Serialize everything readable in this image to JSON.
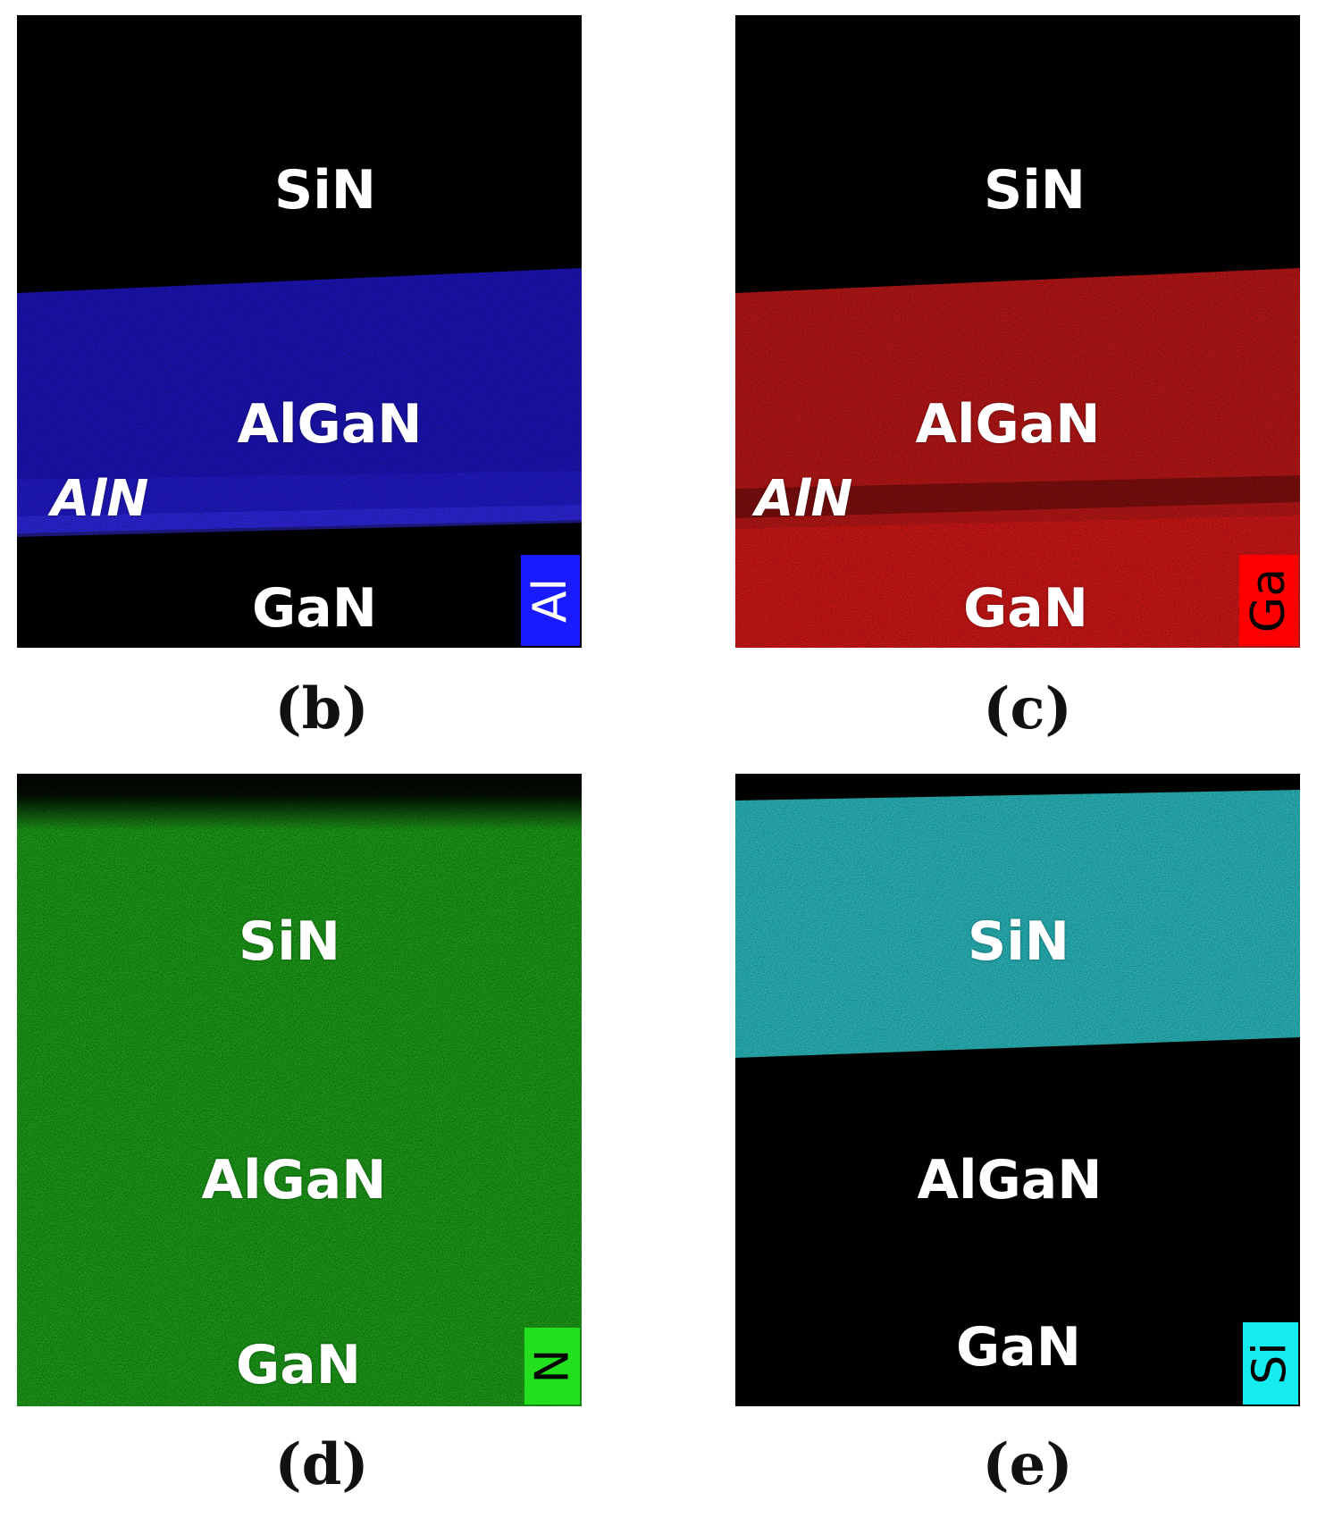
{
  "panels": {
    "b": {
      "caption": "(b)",
      "element_label": "Al",
      "element_color": "#1a1aff",
      "element_text_color": "#ffffff",
      "layers": {
        "top": "SiN",
        "middle": "AlGaN",
        "interlayer": "AlN",
        "bottom": "GaN"
      }
    },
    "c": {
      "caption": "(c)",
      "element_label": "Ga",
      "element_color": "#ff0000",
      "element_text_color": "#000000",
      "layers": {
        "top": "SiN",
        "middle": "AlGaN",
        "interlayer": "AlN",
        "bottom": "GaN"
      }
    },
    "d": {
      "caption": "(d)",
      "element_label": "N",
      "element_color": "#22e01e",
      "element_text_color": "#000000",
      "layers": {
        "top": "SiN",
        "middle": "AlGaN",
        "bottom": "GaN"
      }
    },
    "e": {
      "caption": "(e)",
      "element_label": "Si",
      "element_color": "#15ecef",
      "element_text_color": "#000000",
      "layers": {
        "top": "SiN",
        "middle": "AlGaN",
        "bottom": "GaN"
      }
    }
  }
}
